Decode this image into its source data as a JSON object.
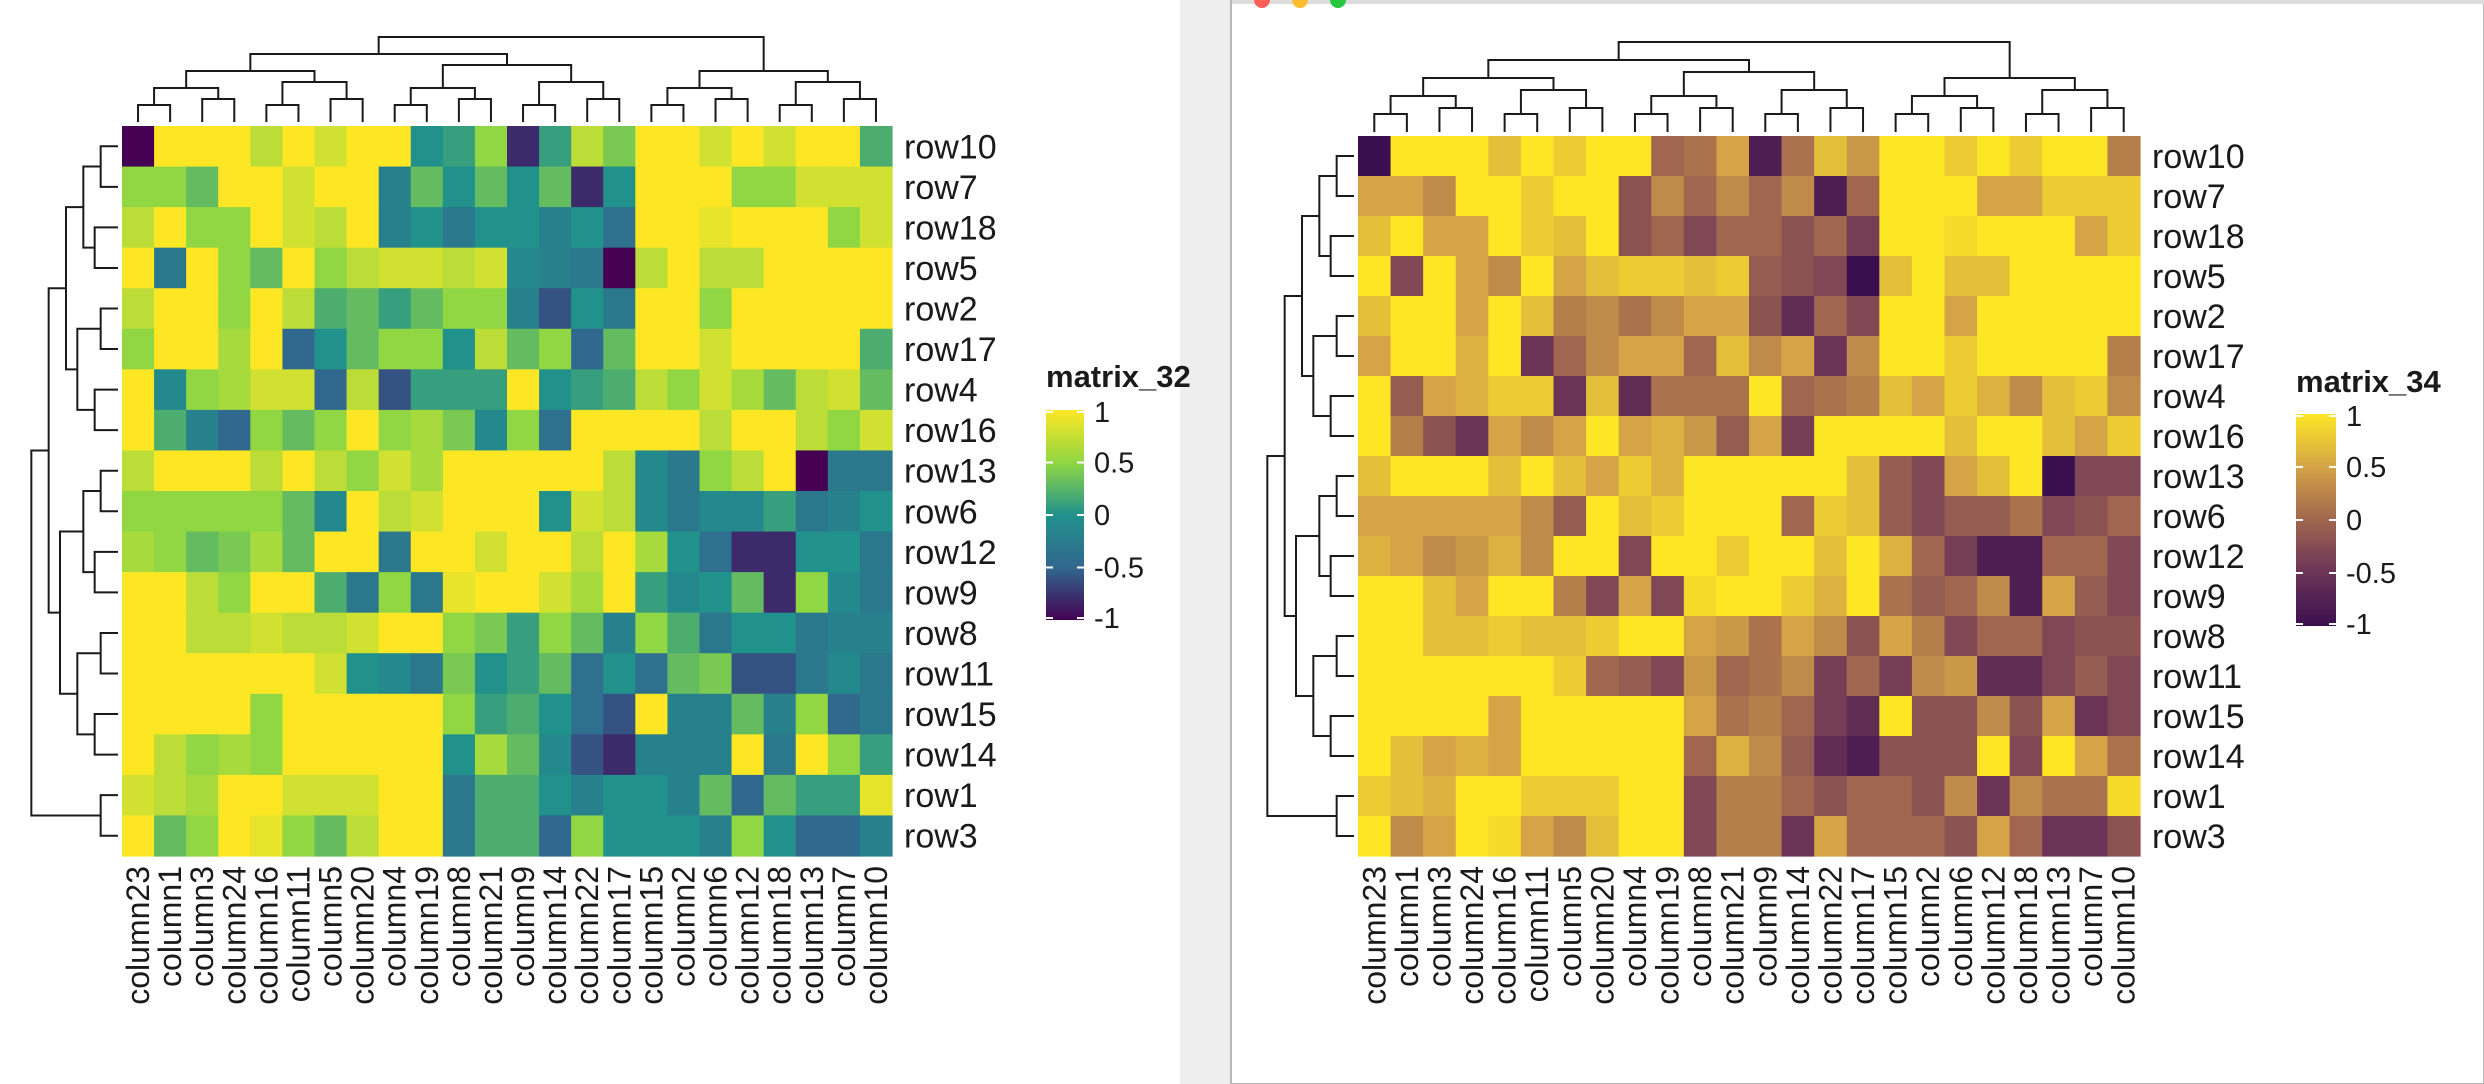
{
  "windows": [
    {
      "name": "left-window",
      "traffic_lights": false,
      "title_text": "",
      "chart_data": {
        "type": "heatmap",
        "title": "",
        "rows": [
          "row10",
          "row7",
          "row18",
          "row5",
          "row2",
          "row17",
          "row4",
          "row16",
          "row13",
          "row6",
          "row12",
          "row9",
          "row8",
          "row11",
          "row15",
          "row14",
          "row1",
          "row3"
        ],
        "columns": [
          "column23",
          "column1",
          "column3",
          "column24",
          "column16",
          "column11",
          "column5",
          "column20",
          "column4",
          "column19",
          "column8",
          "column21",
          "column9",
          "column14",
          "column22",
          "column17",
          "column15",
          "column2",
          "column6",
          "column12",
          "column18",
          "column13",
          "column7",
          "column10"
        ],
        "values": [
          [
            -1,
            1,
            1,
            1,
            0.7,
            1,
            0.8,
            1,
            1,
            0,
            0.1,
            0.5,
            -0.8,
            0.1,
            0.7,
            0.4,
            1,
            1,
            0.8,
            1,
            0.8,
            1,
            1,
            0.2
          ],
          [
            0.5,
            0.5,
            0.3,
            1,
            1,
            0.8,
            1,
            1,
            -0.2,
            0.3,
            0,
            0.3,
            0,
            0.3,
            -0.8,
            0,
            1,
            1,
            1,
            0.5,
            0.5,
            0.8,
            0.8,
            0.8
          ],
          [
            0.7,
            1,
            0.5,
            0.5,
            1,
            0.8,
            0.7,
            1,
            -0.2,
            0,
            -0.3,
            0,
            0,
            -0.2,
            0,
            -0.4,
            1,
            1,
            0.9,
            1,
            1,
            1,
            0.5,
            0.8
          ],
          [
            1,
            -0.3,
            1,
            0.5,
            0.3,
            1,
            0.5,
            0.7,
            0.8,
            0.8,
            0.7,
            0.8,
            -0.1,
            -0.2,
            -0.3,
            -1,
            0.7,
            1,
            0.7,
            0.7,
            1,
            1,
            1,
            1
          ],
          [
            0.7,
            1,
            1,
            0.5,
            1,
            0.7,
            0.2,
            0.3,
            0.1,
            0.3,
            0.5,
            0.5,
            -0.2,
            -0.6,
            0,
            -0.3,
            1,
            1,
            0.5,
            1,
            1,
            1,
            1,
            1
          ],
          [
            0.5,
            1,
            1,
            0.6,
            1,
            -0.5,
            0,
            0.3,
            0.5,
            0.5,
            0,
            0.7,
            0.3,
            0.5,
            -0.5,
            0.3,
            1,
            1,
            0.8,
            1,
            1,
            1,
            1,
            0.2
          ],
          [
            1,
            -0.1,
            0.5,
            0.6,
            0.8,
            0.8,
            -0.5,
            0.7,
            -0.6,
            0.1,
            0.1,
            0.1,
            1,
            0,
            0.1,
            0.2,
            0.7,
            0.5,
            0.8,
            0.6,
            0.3,
            0.7,
            0.8,
            0.3
          ],
          [
            1,
            0.2,
            -0.2,
            -0.5,
            0.5,
            0.3,
            0.5,
            1,
            0.5,
            0.6,
            0.4,
            -0.1,
            0.5,
            -0.4,
            1,
            1,
            1,
            1,
            0.7,
            1,
            1,
            0.7,
            0.5,
            0.8
          ],
          [
            0.7,
            1,
            1,
            1,
            0.7,
            1,
            0.7,
            0.5,
            0.8,
            0.6,
            1,
            1,
            1,
            1,
            1,
            0.7,
            -0.1,
            -0.3,
            0.5,
            0.7,
            1,
            -1,
            -0.3,
            -0.3
          ],
          [
            0.5,
            0.5,
            0.5,
            0.5,
            0.5,
            0.3,
            -0.1,
            1,
            0.7,
            0.8,
            1,
            1,
            1,
            0,
            0.8,
            0.7,
            -0.1,
            -0.3,
            -0.1,
            -0.1,
            0.1,
            -0.3,
            -0.2,
            0
          ],
          [
            0.6,
            0.5,
            0.3,
            0.4,
            0.6,
            0.3,
            1,
            1,
            -0.3,
            1,
            1,
            0.8,
            1,
            1,
            0.7,
            1,
            0.6,
            0,
            -0.4,
            -0.8,
            -0.8,
            0,
            0,
            -0.3
          ],
          [
            1,
            1,
            0.7,
            0.5,
            1,
            1,
            0.2,
            -0.3,
            0.5,
            -0.3,
            0.9,
            1,
            1,
            0.8,
            0.6,
            1,
            0.1,
            -0.1,
            0,
            0.3,
            -0.8,
            0.5,
            -0.1,
            -0.3
          ],
          [
            1,
            1,
            0.7,
            0.7,
            0.8,
            0.7,
            0.7,
            0.8,
            1,
            1,
            0.5,
            0.4,
            0.1,
            0.5,
            0.3,
            -0.2,
            0.5,
            0.2,
            -0.3,
            0,
            0,
            -0.3,
            -0.2,
            -0.2
          ],
          [
            1,
            1,
            1,
            1,
            1,
            1,
            0.8,
            0,
            -0.1,
            -0.3,
            0.4,
            0,
            0.1,
            0.3,
            -0.4,
            0,
            -0.4,
            0.3,
            0.4,
            -0.6,
            -0.6,
            -0.3,
            -0.1,
            -0.3
          ],
          [
            1,
            1,
            1,
            1,
            0.5,
            1,
            1,
            1,
            1,
            1,
            0.5,
            0.1,
            0.2,
            0,
            -0.4,
            -0.6,
            1,
            -0.2,
            -0.2,
            0.3,
            -0.2,
            0.5,
            -0.5,
            -0.3
          ],
          [
            1,
            0.7,
            0.5,
            0.6,
            0.5,
            1,
            1,
            1,
            1,
            1,
            0,
            0.6,
            0.3,
            -0.1,
            -0.6,
            -0.8,
            -0.2,
            -0.2,
            -0.2,
            1,
            -0.3,
            1,
            0.5,
            0.1
          ],
          [
            0.8,
            0.7,
            0.6,
            1,
            1,
            0.8,
            0.8,
            0.8,
            1,
            1,
            -0.3,
            0.2,
            0.2,
            0,
            -0.2,
            0,
            0,
            -0.2,
            0.3,
            -0.5,
            0.3,
            0.1,
            0.1,
            0.9
          ],
          [
            1,
            0.3,
            0.5,
            1,
            0.9,
            0.5,
            0.3,
            0.7,
            1,
            1,
            -0.3,
            0.2,
            0.2,
            -0.5,
            0.5,
            0,
            0,
            0,
            -0.2,
            0.5,
            0,
            -0.5,
            -0.5,
            -0.2
          ]
        ],
        "legend": {
          "title": "matrix_32",
          "ticks": [
            1,
            0.5,
            0,
            -0.5,
            -1
          ]
        },
        "colormap": [
          "#440154",
          "#31688e",
          "#21918c",
          "#90d743",
          "#fde725"
        ],
        "value_range": [
          -1,
          1
        ]
      }
    },
    {
      "name": "right-window",
      "traffic_lights": true,
      "title_text": "",
      "chart_data": {
        "type": "heatmap",
        "title": "",
        "rows": [
          "row10",
          "row7",
          "row18",
          "row5",
          "row2",
          "row17",
          "row4",
          "row16",
          "row13",
          "row6",
          "row12",
          "row9",
          "row8",
          "row11",
          "row15",
          "row14",
          "row1",
          "row3"
        ],
        "columns": [
          "column23",
          "column1",
          "column3",
          "column24",
          "column16",
          "column11",
          "column5",
          "column20",
          "column4",
          "column19",
          "column8",
          "column21",
          "column9",
          "column14",
          "column22",
          "column17",
          "column15",
          "column2",
          "column6",
          "column12",
          "column18",
          "column13",
          "column7",
          "column10"
        ],
        "values": [
          [
            -1,
            1,
            1,
            1,
            0.7,
            1,
            0.8,
            1,
            1,
            0,
            0.1,
            0.5,
            -0.8,
            0.1,
            0.7,
            0.4,
            1,
            1,
            0.8,
            1,
            0.8,
            1,
            1,
            0.2
          ],
          [
            0.5,
            0.5,
            0.3,
            1,
            1,
            0.8,
            1,
            1,
            -0.2,
            0.3,
            0,
            0.3,
            0,
            0.3,
            -0.8,
            0,
            1,
            1,
            1,
            0.5,
            0.5,
            0.8,
            0.8,
            0.8
          ],
          [
            0.7,
            1,
            0.5,
            0.5,
            1,
            0.8,
            0.7,
            1,
            -0.2,
            0,
            -0.3,
            0,
            0,
            -0.2,
            0,
            -0.4,
            1,
            1,
            0.9,
            1,
            1,
            1,
            0.5,
            0.8
          ],
          [
            1,
            -0.3,
            1,
            0.5,
            0.3,
            1,
            0.5,
            0.7,
            0.8,
            0.8,
            0.7,
            0.8,
            -0.1,
            -0.2,
            -0.3,
            -1,
            0.7,
            1,
            0.7,
            0.7,
            1,
            1,
            1,
            1
          ],
          [
            0.7,
            1,
            1,
            0.5,
            1,
            0.7,
            0.2,
            0.3,
            0.1,
            0.3,
            0.5,
            0.5,
            -0.2,
            -0.6,
            0,
            -0.3,
            1,
            1,
            0.5,
            1,
            1,
            1,
            1,
            1
          ],
          [
            0.5,
            1,
            1,
            0.6,
            1,
            -0.5,
            0,
            0.3,
            0.5,
            0.5,
            0,
            0.7,
            0.3,
            0.5,
            -0.5,
            0.3,
            1,
            1,
            0.8,
            1,
            1,
            1,
            1,
            0.2
          ],
          [
            1,
            -0.1,
            0.5,
            0.6,
            0.8,
            0.8,
            -0.5,
            0.7,
            -0.6,
            0.1,
            0.1,
            0.1,
            1,
            0,
            0.1,
            0.2,
            0.7,
            0.5,
            0.8,
            0.6,
            0.3,
            0.7,
            0.8,
            0.3
          ],
          [
            1,
            0.2,
            -0.2,
            -0.5,
            0.5,
            0.3,
            0.5,
            1,
            0.5,
            0.6,
            0.4,
            -0.1,
            0.5,
            -0.4,
            1,
            1,
            1,
            1,
            0.7,
            1,
            1,
            0.7,
            0.5,
            0.8
          ],
          [
            0.7,
            1,
            1,
            1,
            0.7,
            1,
            0.7,
            0.5,
            0.8,
            0.6,
            1,
            1,
            1,
            1,
            1,
            0.7,
            -0.1,
            -0.3,
            0.5,
            0.7,
            1,
            -1,
            -0.3,
            -0.3
          ],
          [
            0.5,
            0.5,
            0.5,
            0.5,
            0.5,
            0.3,
            -0.1,
            1,
            0.7,
            0.8,
            1,
            1,
            1,
            0,
            0.8,
            0.7,
            -0.1,
            -0.3,
            -0.1,
            -0.1,
            0.1,
            -0.3,
            -0.2,
            0
          ],
          [
            0.6,
            0.5,
            0.3,
            0.4,
            0.6,
            0.3,
            1,
            1,
            -0.3,
            1,
            1,
            0.8,
            1,
            1,
            0.7,
            1,
            0.6,
            0,
            -0.4,
            -0.8,
            -0.8,
            0,
            0,
            -0.3
          ],
          [
            1,
            1,
            0.7,
            0.5,
            1,
            1,
            0.2,
            -0.3,
            0.5,
            -0.3,
            0.9,
            1,
            1,
            0.8,
            0.6,
            1,
            0.1,
            -0.1,
            0,
            0.3,
            -0.8,
            0.5,
            -0.1,
            -0.3
          ],
          [
            1,
            1,
            0.7,
            0.7,
            0.8,
            0.7,
            0.7,
            0.8,
            1,
            1,
            0.5,
            0.4,
            0.1,
            0.5,
            0.3,
            -0.2,
            0.5,
            0.2,
            -0.3,
            0,
            0,
            -0.3,
            -0.2,
            -0.2
          ],
          [
            1,
            1,
            1,
            1,
            1,
            1,
            0.8,
            0,
            -0.1,
            -0.3,
            0.4,
            0,
            0.1,
            0.3,
            -0.4,
            0,
            -0.4,
            0.3,
            0.4,
            -0.6,
            -0.6,
            -0.3,
            -0.1,
            -0.3
          ],
          [
            1,
            1,
            1,
            1,
            0.5,
            1,
            1,
            1,
            1,
            1,
            0.5,
            0.1,
            0.2,
            0,
            -0.4,
            -0.6,
            1,
            -0.2,
            -0.2,
            0.3,
            -0.2,
            0.5,
            -0.5,
            -0.3
          ],
          [
            1,
            0.7,
            0.5,
            0.6,
            0.5,
            1,
            1,
            1,
            1,
            1,
            0,
            0.6,
            0.3,
            -0.1,
            -0.6,
            -0.8,
            -0.2,
            -0.2,
            -0.2,
            1,
            -0.3,
            1,
            0.5,
            0.1
          ],
          [
            0.8,
            0.7,
            0.6,
            1,
            1,
            0.8,
            0.8,
            0.8,
            1,
            1,
            -0.3,
            0.2,
            0.2,
            0,
            -0.2,
            0,
            0,
            -0.2,
            0.3,
            -0.5,
            0.3,
            0.1,
            0.1,
            0.9
          ],
          [
            1,
            0.3,
            0.5,
            1,
            0.9,
            0.5,
            0.3,
            0.7,
            1,
            1,
            -0.3,
            0.2,
            0.2,
            -0.5,
            0.5,
            0,
            0,
            0,
            -0.2,
            0.5,
            0,
            -0.5,
            -0.5,
            -0.2
          ]
        ],
        "legend": {
          "title": "matrix_34",
          "ticks": [
            1,
            0.5,
            0,
            -0.5,
            -1
          ]
        },
        "colormap": [
          "#3b0f4f",
          "#6b3457",
          "#a0664f",
          "#d4a447",
          "#fde725"
        ],
        "value_range": [
          -1,
          1
        ]
      }
    }
  ]
}
